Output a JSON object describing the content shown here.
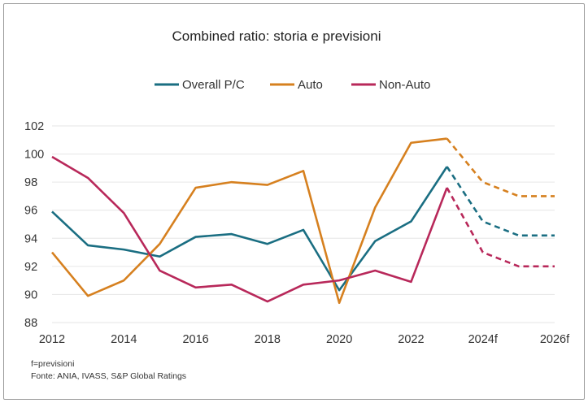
{
  "chart_data": {
    "type": "line",
    "title": "Combined ratio: storia e previsioni",
    "x": [
      "2012",
      "2013",
      "2014",
      "2015",
      "2016",
      "2017",
      "2018",
      "2019",
      "2020",
      "2021",
      "2022",
      "2023",
      "2024f",
      "2025f",
      "2026f"
    ],
    "x_tick_labels": [
      "2012",
      "2014",
      "2016",
      "2018",
      "2020",
      "2022",
      "2024f",
      "2026f"
    ],
    "ylim": [
      88,
      102
    ],
    "y_ticks": [
      88,
      90,
      92,
      94,
      96,
      98,
      100,
      102
    ],
    "grid": true,
    "legend_position": "top",
    "forecast_from_index": 11,
    "series": [
      {
        "name": "Overall P/C",
        "color": "#1a6e82",
        "values": [
          95.9,
          93.5,
          93.2,
          92.7,
          94.1,
          94.3,
          93.6,
          94.6,
          90.3,
          93.8,
          95.2,
          99.1,
          95.2,
          94.2,
          94.2
        ]
      },
      {
        "name": "Auto",
        "color": "#d6801f",
        "values": [
          93.0,
          89.9,
          91.0,
          93.6,
          97.6,
          98.0,
          97.8,
          98.8,
          89.4,
          96.2,
          100.8,
          101.1,
          98.0,
          97.0,
          97.0
        ]
      },
      {
        "name": "Non-Auto",
        "color": "#b8285a",
        "values": [
          99.8,
          98.3,
          95.8,
          91.7,
          90.5,
          90.7,
          89.5,
          90.7,
          91.0,
          91.7,
          90.9,
          97.6,
          93.0,
          92.0,
          92.0
        ]
      }
    ],
    "notes": [
      "f=previsioni",
      "Fonte: ANIA, IVASS, S&P Global Ratings"
    ]
  }
}
